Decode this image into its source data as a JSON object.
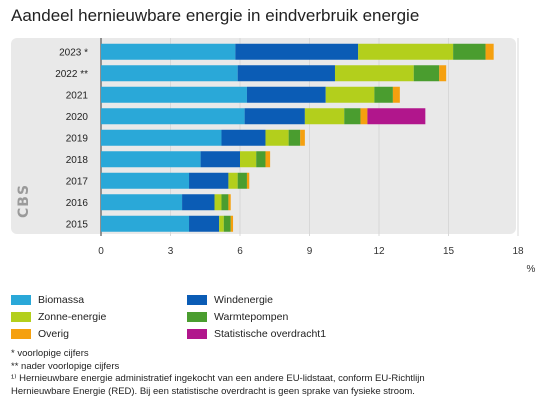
{
  "title": "Aandeel hernieuwbare energie in eindverbruik energie",
  "colors": {
    "Biomassa": "#2aa8d8",
    "Windenergie": "#0b5cb5",
    "Zonne-energie": "#b3cf1c",
    "Warmtepompen": "#4a9d2f",
    "Overig": "#f5a00f",
    "Statistische overdracht1": "#b1168c"
  },
  "logo_text": "CBS",
  "legend": [
    {
      "label": "Biomassa",
      "color": "#2aa8d8"
    },
    {
      "label": "Windenergie",
      "color": "#0b5cb5"
    },
    {
      "label": "Zonne-energie",
      "color": "#b3cf1c"
    },
    {
      "label": "Warmtepompen",
      "color": "#4a9d2f"
    },
    {
      "label": "Overig",
      "color": "#f5a00f"
    },
    {
      "label": "Statistische overdracht1",
      "color": "#b1168c"
    }
  ],
  "notes": [
    "* voorlopige cijfers",
    "** nader voorlopige cijfers",
    "¹⁾ Hernieuwbare energie administratief ingekocht van een andere EU-lidstaat, conform EU-Richtlijn",
    "Hernieuwbare Energie (RED). Bij een statistische overdracht is geen sprake van fysieke stroom."
  ],
  "chart_data": {
    "type": "bar",
    "orientation": "horizontal",
    "stacked": true,
    "title": "Aandeel hernieuwbare energie in eindverbruik energie",
    "xlabel": "%",
    "ylabel": "",
    "xlim": [
      0,
      18
    ],
    "xticks": [
      0,
      3,
      6,
      9,
      12,
      15,
      18
    ],
    "grid": true,
    "categories": [
      "2023 *",
      "2022 **",
      "2021",
      "2020",
      "2019",
      "2018",
      "2017",
      "2016",
      "2015"
    ],
    "series": [
      {
        "name": "Biomassa",
        "values": [
          5.8,
          5.9,
          6.3,
          6.2,
          5.2,
          4.3,
          3.8,
          3.5,
          3.8
        ]
      },
      {
        "name": "Windenergie",
        "values": [
          5.3,
          4.2,
          3.4,
          2.6,
          1.9,
          1.7,
          1.7,
          1.4,
          1.3
        ]
      },
      {
        "name": "Zonne-energie",
        "values": [
          4.1,
          3.4,
          2.1,
          1.7,
          1.0,
          0.7,
          0.4,
          0.3,
          0.2
        ]
      },
      {
        "name": "Warmtepompen",
        "values": [
          1.4,
          1.1,
          0.8,
          0.7,
          0.5,
          0.4,
          0.4,
          0.3,
          0.3
        ]
      },
      {
        "name": "Overig",
        "values": [
          0.35,
          0.3,
          0.3,
          0.3,
          0.2,
          0.2,
          0.1,
          0.1,
          0.1
        ]
      },
      {
        "name": "Statistische overdracht1",
        "values": [
          0,
          0,
          0,
          2.5,
          0,
          0,
          0,
          0,
          0
        ]
      }
    ]
  }
}
